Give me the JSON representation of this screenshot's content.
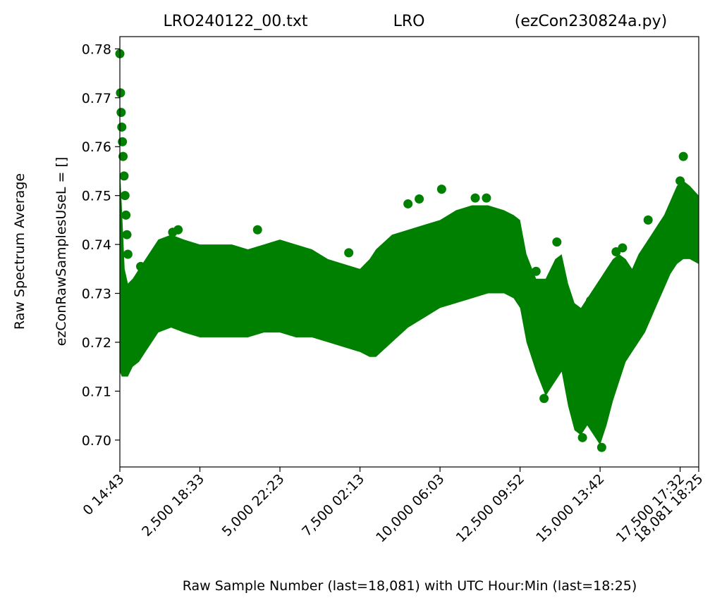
{
  "chart_data": {
    "type": "scatter",
    "title_parts": [
      "LRO240122_00.txt",
      "LRO",
      "(ezCon230824a.py)"
    ],
    "ylabel_line1": "Raw Spectrum Average",
    "ylabel_line2": "ezConRawSamplesUseL = []",
    "xlabel": "Raw Sample Number (last=18,081) with UTC Hour:Min (last=18:25)",
    "xlim": [
      0,
      18081
    ],
    "ylim": [
      0.6945,
      0.7825
    ],
    "grid": false,
    "marker_color": "#008000",
    "y_ticks": [
      {
        "value": 0.7,
        "label": "0.70"
      },
      {
        "value": 0.71,
        "label": "0.71"
      },
      {
        "value": 0.72,
        "label": "0.72"
      },
      {
        "value": 0.73,
        "label": "0.73"
      },
      {
        "value": 0.74,
        "label": "0.74"
      },
      {
        "value": 0.75,
        "label": "0.75"
      },
      {
        "value": 0.76,
        "label": "0.76"
      },
      {
        "value": 0.77,
        "label": "0.77"
      },
      {
        "value": 0.78,
        "label": "0.78"
      }
    ],
    "x_ticks": [
      {
        "value": 0,
        "label": "0  14:43"
      },
      {
        "value": 2500,
        "label": "2,500  18:33"
      },
      {
        "value": 5000,
        "label": "5,000  22:23"
      },
      {
        "value": 7500,
        "label": "7,500  02:13"
      },
      {
        "value": 10000,
        "label": "10,000  06:03"
      },
      {
        "value": 12500,
        "label": "12,500  09:52"
      },
      {
        "value": 15000,
        "label": "15,000  13:42"
      },
      {
        "value": 17500,
        "label": "17,500  17:32"
      },
      {
        "value": 18081,
        "label": "18,081  18:25"
      }
    ],
    "band": {
      "x": [
        0,
        60,
        150,
        250,
        400,
        600,
        800,
        1200,
        1600,
        2000,
        2500,
        3000,
        3500,
        4000,
        4500,
        5000,
        5500,
        6000,
        6500,
        7000,
        7500,
        7800,
        8000,
        8500,
        9000,
        9500,
        10000,
        10500,
        11000,
        11500,
        12000,
        12300,
        12500,
        12700,
        13000,
        13300,
        13600,
        13800,
        14000,
        14200,
        14400,
        14600,
        14800,
        15000,
        15200,
        15400,
        15600,
        15800,
        16000,
        16200,
        16400,
        16600,
        16800,
        17000,
        17200,
        17400,
        17600,
        17800,
        18081
      ],
      "upper": [
        0.756,
        0.748,
        0.735,
        0.732,
        0.733,
        0.735,
        0.737,
        0.741,
        0.742,
        0.741,
        0.74,
        0.74,
        0.74,
        0.739,
        0.74,
        0.741,
        0.74,
        0.739,
        0.737,
        0.736,
        0.735,
        0.737,
        0.739,
        0.742,
        0.743,
        0.744,
        0.745,
        0.747,
        0.748,
        0.748,
        0.747,
        0.746,
        0.745,
        0.738,
        0.733,
        0.733,
        0.737,
        0.738,
        0.732,
        0.728,
        0.727,
        0.729,
        0.731,
        0.733,
        0.735,
        0.737,
        0.738,
        0.737,
        0.735,
        0.738,
        0.74,
        0.742,
        0.744,
        0.746,
        0.749,
        0.752,
        0.753,
        0.752,
        0.75
      ],
      "lower": [
        0.714,
        0.713,
        0.713,
        0.713,
        0.715,
        0.716,
        0.718,
        0.722,
        0.723,
        0.722,
        0.721,
        0.721,
        0.721,
        0.721,
        0.722,
        0.722,
        0.721,
        0.721,
        0.72,
        0.719,
        0.718,
        0.717,
        0.717,
        0.72,
        0.723,
        0.725,
        0.727,
        0.728,
        0.729,
        0.73,
        0.73,
        0.729,
        0.727,
        0.72,
        0.714,
        0.709,
        0.712,
        0.714,
        0.707,
        0.702,
        0.701,
        0.703,
        0.701,
        0.699,
        0.703,
        0.708,
        0.712,
        0.716,
        0.718,
        0.72,
        0.722,
        0.725,
        0.728,
        0.731,
        0.734,
        0.736,
        0.737,
        0.737,
        0.736
      ]
    },
    "points": [
      {
        "x": 0,
        "y": 0.779
      },
      {
        "x": 20,
        "y": 0.771
      },
      {
        "x": 40,
        "y": 0.767
      },
      {
        "x": 60,
        "y": 0.764
      },
      {
        "x": 80,
        "y": 0.761
      },
      {
        "x": 100,
        "y": 0.758
      },
      {
        "x": 130,
        "y": 0.754
      },
      {
        "x": 160,
        "y": 0.75
      },
      {
        "x": 190,
        "y": 0.746
      },
      {
        "x": 220,
        "y": 0.742
      },
      {
        "x": 250,
        "y": 0.738
      },
      {
        "x": 650,
        "y": 0.7355
      },
      {
        "x": 1650,
        "y": 0.7425
      },
      {
        "x": 1820,
        "y": 0.743
      },
      {
        "x": 4300,
        "y": 0.743
      },
      {
        "x": 7150,
        "y": 0.7383
      },
      {
        "x": 9000,
        "y": 0.7483
      },
      {
        "x": 9350,
        "y": 0.7493
      },
      {
        "x": 10050,
        "y": 0.7513
      },
      {
        "x": 11100,
        "y": 0.7495
      },
      {
        "x": 11450,
        "y": 0.7495
      },
      {
        "x": 13000,
        "y": 0.7345
      },
      {
        "x": 13650,
        "y": 0.7405
      },
      {
        "x": 14700,
        "y": 0.7285
      },
      {
        "x": 14750,
        "y": 0.7273
      },
      {
        "x": 15050,
        "y": 0.6985
      },
      {
        "x": 13250,
        "y": 0.7085
      },
      {
        "x": 14450,
        "y": 0.7005
      },
      {
        "x": 15500,
        "y": 0.7385
      },
      {
        "x": 15700,
        "y": 0.7393
      },
      {
        "x": 16500,
        "y": 0.745
      },
      {
        "x": 17500,
        "y": 0.753
      },
      {
        "x": 17600,
        "y": 0.758
      }
    ]
  }
}
